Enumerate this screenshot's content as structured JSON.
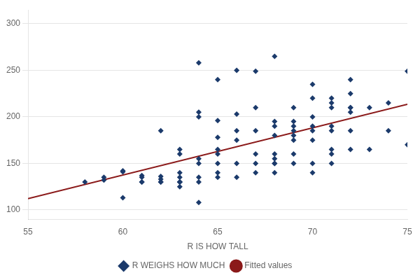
{
  "chart_data": {
    "type": "scatter",
    "xlabel": "R IS HOW TALL",
    "xlim": [
      55,
      75
    ],
    "ylim": [
      90,
      315
    ],
    "xticks": [
      55,
      60,
      65,
      70,
      75
    ],
    "yticks": [
      100,
      150,
      200,
      250,
      300
    ],
    "grid": "y",
    "legend": "bottom",
    "series": [
      {
        "name": "R WEIGHS HOW MUCH",
        "type": "scatter",
        "color": "#1B3A6B",
        "marker": "diamond",
        "x": [
          58,
          59,
          59,
          60,
          60,
          60,
          61,
          61,
          61,
          61,
          62,
          62,
          62,
          62,
          62,
          63,
          63,
          63,
          63,
          63,
          63,
          63,
          63,
          64,
          64,
          64,
          64,
          64,
          64,
          64,
          64,
          65,
          65,
          65,
          65,
          65,
          65,
          65,
          65,
          66,
          66,
          66,
          66,
          66,
          66,
          67,
          67,
          67,
          67,
          67,
          67,
          68,
          68,
          68,
          68,
          68,
          68,
          68,
          68,
          68,
          69,
          69,
          69,
          69,
          69,
          69,
          69,
          69,
          70,
          70,
          70,
          70,
          70,
          70,
          70,
          70,
          71,
          71,
          71,
          71,
          71,
          71,
          71,
          71,
          72,
          72,
          72,
          72,
          72,
          72,
          72,
          73,
          73,
          74,
          74,
          75,
          75
        ],
        "values": [
          130,
          132,
          135,
          113,
          141,
          142,
          130,
          130,
          135,
          137,
          130,
          130,
          133,
          136,
          185,
          125,
          130,
          130,
          130,
          135,
          140,
          160,
          165,
          108,
          130,
          135,
          150,
          155,
          200,
          205,
          258,
          135,
          140,
          150,
          160,
          165,
          178,
          196,
          240,
          135,
          150,
          175,
          185,
          203,
          250,
          140,
          150,
          160,
          185,
          210,
          249,
          140,
          150,
          150,
          155,
          160,
          180,
          190,
          195,
          265,
          150,
          160,
          175,
          180,
          185,
          190,
          195,
          210,
          140,
          150,
          175,
          185,
          190,
          200,
          220,
          235,
          150,
          160,
          165,
          185,
          190,
          210,
          215,
          220,
          165,
          185,
          205,
          210,
          210,
          225,
          240,
          165,
          210,
          185,
          215,
          170,
          249
        ]
      },
      {
        "name": "Fitted values",
        "type": "line",
        "color": "#8B1A1A",
        "line_style": "solid",
        "x": [
          55,
          75
        ],
        "values": [
          112.216,
          213.522
        ]
      }
    ]
  }
}
